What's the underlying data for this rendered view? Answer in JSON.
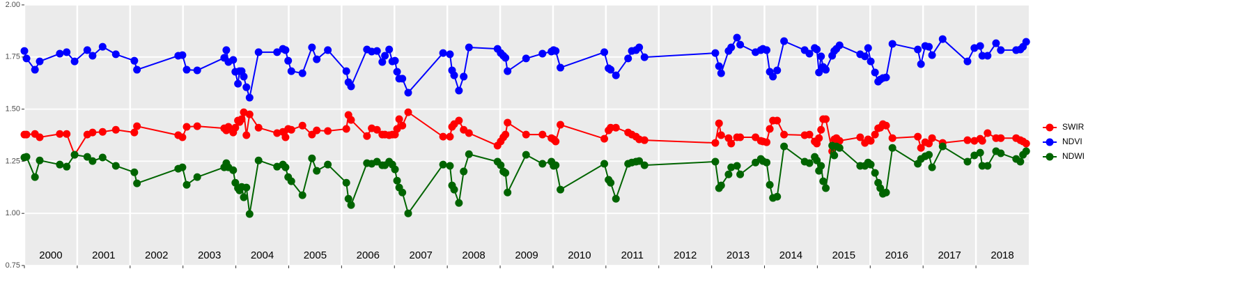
{
  "chart_data": {
    "type": "line",
    "x": [
      2000.0,
      2000.04,
      2000.2,
      2000.29,
      2000.67,
      2000.8,
      2000.95,
      2001.19,
      2001.29,
      2001.48,
      2001.73,
      2002.08,
      2002.13,
      2002.91,
      2002.99,
      2003.07,
      2003.27,
      2003.78,
      2003.82,
      2003.86,
      2003.95,
      2003.99,
      2004.04,
      2004.07,
      2004.11,
      2004.15,
      2004.2,
      2004.26,
      2004.43,
      2004.78,
      2004.89,
      2004.94,
      2004.99,
      2005.05,
      2005.26,
      2005.44,
      2005.53,
      2005.74,
      2006.09,
      2006.13,
      2006.18,
      2006.48,
      2006.57,
      2006.67,
      2006.77,
      2006.82,
      2006.9,
      2006.96,
      2007.01,
      2007.05,
      2007.09,
      2007.15,
      2007.26,
      2007.92,
      2008.05,
      2008.09,
      2008.13,
      2008.22,
      2008.31,
      2008.41,
      2008.95,
      2009.01,
      2009.06,
      2009.1,
      2009.14,
      2009.49,
      2009.8,
      2009.97,
      2010.01,
      2010.05,
      2010.14,
      2010.97,
      2011.05,
      2011.09,
      2011.19,
      2011.42,
      2011.49,
      2011.57,
      2011.63,
      2011.73,
      2013.07,
      2013.14,
      2013.18,
      2013.32,
      2013.37,
      2013.48,
      2013.54,
      2013.83,
      2013.93,
      2013.97,
      2014.04,
      2014.1,
      2014.16,
      2014.24,
      2014.37,
      2014.76,
      2014.85,
      2014.95,
      2014.99,
      2015.03,
      2015.07,
      2015.11,
      2015.16,
      2015.28,
      2015.32,
      2015.36,
      2015.42,
      2015.81,
      2015.9,
      2015.96,
      2016.01,
      2016.09,
      2016.15,
      2016.19,
      2016.24,
      2016.3,
      2016.42,
      2016.9,
      2016.96,
      2017.04,
      2017.11,
      2017.17,
      2017.37,
      2017.84,
      2017.97,
      2018.08,
      2018.12,
      2018.22,
      2018.38,
      2018.47,
      2018.76,
      2018.84,
      2018.89,
      2018.95
    ],
    "series": [
      {
        "name": "SWIR",
        "color": "#ff0000",
        "values": [
          1.378,
          1.378,
          1.381,
          1.365,
          1.381,
          1.381,
          1.281,
          1.378,
          1.388,
          1.391,
          1.401,
          1.388,
          1.418,
          1.375,
          1.365,
          1.415,
          1.418,
          1.408,
          1.398,
          1.415,
          1.388,
          1.411,
          1.445,
          1.438,
          1.452,
          1.485,
          1.375,
          1.475,
          1.411,
          1.385,
          1.391,
          1.365,
          1.405,
          1.401,
          1.421,
          1.378,
          1.398,
          1.395,
          1.405,
          1.472,
          1.448,
          1.371,
          1.408,
          1.401,
          1.378,
          1.378,
          1.375,
          1.378,
          1.378,
          1.405,
          1.452,
          1.421,
          1.485,
          1.368,
          1.368,
          1.415,
          1.428,
          1.445,
          1.401,
          1.385,
          1.325,
          1.345,
          1.365,
          1.378,
          1.435,
          1.378,
          1.378,
          1.361,
          1.355,
          1.345,
          1.425,
          1.358,
          1.398,
          1.411,
          1.411,
          1.388,
          1.378,
          1.368,
          1.355,
          1.351,
          1.338,
          1.432,
          1.375,
          1.361,
          1.335,
          1.365,
          1.365,
          1.365,
          1.348,
          1.345,
          1.341,
          1.405,
          1.445,
          1.445,
          1.378,
          1.375,
          1.378,
          1.345,
          1.335,
          1.361,
          1.401,
          1.452,
          1.452,
          1.298,
          1.355,
          1.361,
          1.348,
          1.365,
          1.338,
          1.355,
          1.348,
          1.378,
          1.408,
          1.411,
          1.428,
          1.421,
          1.361,
          1.368,
          1.314,
          1.341,
          1.335,
          1.361,
          1.338,
          1.351,
          1.348,
          1.358,
          1.348,
          1.385,
          1.361,
          1.361,
          1.361,
          1.351,
          1.345,
          1.335
        ]
      },
      {
        "name": "NDVI",
        "color": "#0000ff",
        "values": [
          1.779,
          1.743,
          1.689,
          1.729,
          1.766,
          1.773,
          1.729,
          1.783,
          1.756,
          1.799,
          1.763,
          1.732,
          1.689,
          1.756,
          1.759,
          1.689,
          1.686,
          1.746,
          1.783,
          1.726,
          1.736,
          1.679,
          1.622,
          1.682,
          1.682,
          1.656,
          1.605,
          1.555,
          1.773,
          1.773,
          1.789,
          1.783,
          1.732,
          1.682,
          1.672,
          1.796,
          1.739,
          1.783,
          1.682,
          1.629,
          1.609,
          1.786,
          1.776,
          1.779,
          1.726,
          1.756,
          1.786,
          1.729,
          1.732,
          1.679,
          1.646,
          1.646,
          1.579,
          1.769,
          1.763,
          1.686,
          1.662,
          1.589,
          1.656,
          1.796,
          1.789,
          1.769,
          1.756,
          1.746,
          1.682,
          1.743,
          1.766,
          1.776,
          1.783,
          1.779,
          1.699,
          1.773,
          1.696,
          1.689,
          1.662,
          1.743,
          1.779,
          1.783,
          1.796,
          1.749,
          1.769,
          1.706,
          1.672,
          1.779,
          1.796,
          1.843,
          1.809,
          1.773,
          1.783,
          1.789,
          1.783,
          1.679,
          1.656,
          1.686,
          1.826,
          1.783,
          1.766,
          1.793,
          1.786,
          1.676,
          1.753,
          1.702,
          1.689,
          1.756,
          1.779,
          1.789,
          1.806,
          1.763,
          1.753,
          1.793,
          1.729,
          1.676,
          1.632,
          1.642,
          1.649,
          1.652,
          1.813,
          1.786,
          1.716,
          1.803,
          1.799,
          1.759,
          1.836,
          1.729,
          1.793,
          1.803,
          1.756,
          1.756,
          1.816,
          1.783,
          1.783,
          1.786,
          1.799,
          1.823
        ]
      },
      {
        "name": "NDWI",
        "color": "#006400",
        "values": [
          1.268,
          1.271,
          1.174,
          1.254,
          1.234,
          1.224,
          1.281,
          1.271,
          1.251,
          1.268,
          1.228,
          1.197,
          1.144,
          1.214,
          1.221,
          1.137,
          1.174,
          1.221,
          1.241,
          1.221,
          1.207,
          1.147,
          1.121,
          1.11,
          1.127,
          1.077,
          1.124,
          0.997,
          1.254,
          1.224,
          1.234,
          1.221,
          1.174,
          1.154,
          1.087,
          1.264,
          1.204,
          1.234,
          1.147,
          1.07,
          1.04,
          1.241,
          1.238,
          1.248,
          1.231,
          1.231,
          1.248,
          1.234,
          1.211,
          1.157,
          1.124,
          1.1,
          1.0,
          1.234,
          1.228,
          1.134,
          1.114,
          1.05,
          1.201,
          1.284,
          1.248,
          1.231,
          1.201,
          1.194,
          1.1,
          1.281,
          1.238,
          1.248,
          1.228,
          1.231,
          1.114,
          1.238,
          1.161,
          1.147,
          1.07,
          1.238,
          1.244,
          1.248,
          1.251,
          1.231,
          1.248,
          1.121,
          1.134,
          1.187,
          1.221,
          1.228,
          1.187,
          1.244,
          1.261,
          1.251,
          1.244,
          1.137,
          1.074,
          1.08,
          1.321,
          1.248,
          1.241,
          1.271,
          1.254,
          1.204,
          1.228,
          1.154,
          1.121,
          1.325,
          1.278,
          1.321,
          1.314,
          1.228,
          1.228,
          1.244,
          1.234,
          1.194,
          1.147,
          1.121,
          1.094,
          1.1,
          1.314,
          1.238,
          1.261,
          1.274,
          1.281,
          1.221,
          1.321,
          1.248,
          1.278,
          1.291,
          1.228,
          1.228,
          1.298,
          1.288,
          1.261,
          1.248,
          1.281,
          1.298
        ]
      }
    ],
    "xlim": [
      2000,
      2019
    ],
    "xticks": [
      2000,
      2001,
      2002,
      2003,
      2004,
      2005,
      2006,
      2007,
      2008,
      2009,
      2010,
      2011,
      2012,
      2013,
      2014,
      2015,
      2016,
      2017,
      2018
    ],
    "ylim": [
      0.75,
      2.0
    ],
    "yticks": [
      {
        "value": 0.75,
        "label": "0.75"
      },
      {
        "value": 1.0,
        "label": "1.00"
      },
      {
        "value": 1.25,
        "label": "1.25"
      },
      {
        "value": 1.5,
        "label": "1.50"
      },
      {
        "value": 1.75,
        "label": "1.75"
      },
      {
        "value": 2.0,
        "label": "2.00"
      }
    ],
    "grid": true,
    "legend": "right"
  }
}
